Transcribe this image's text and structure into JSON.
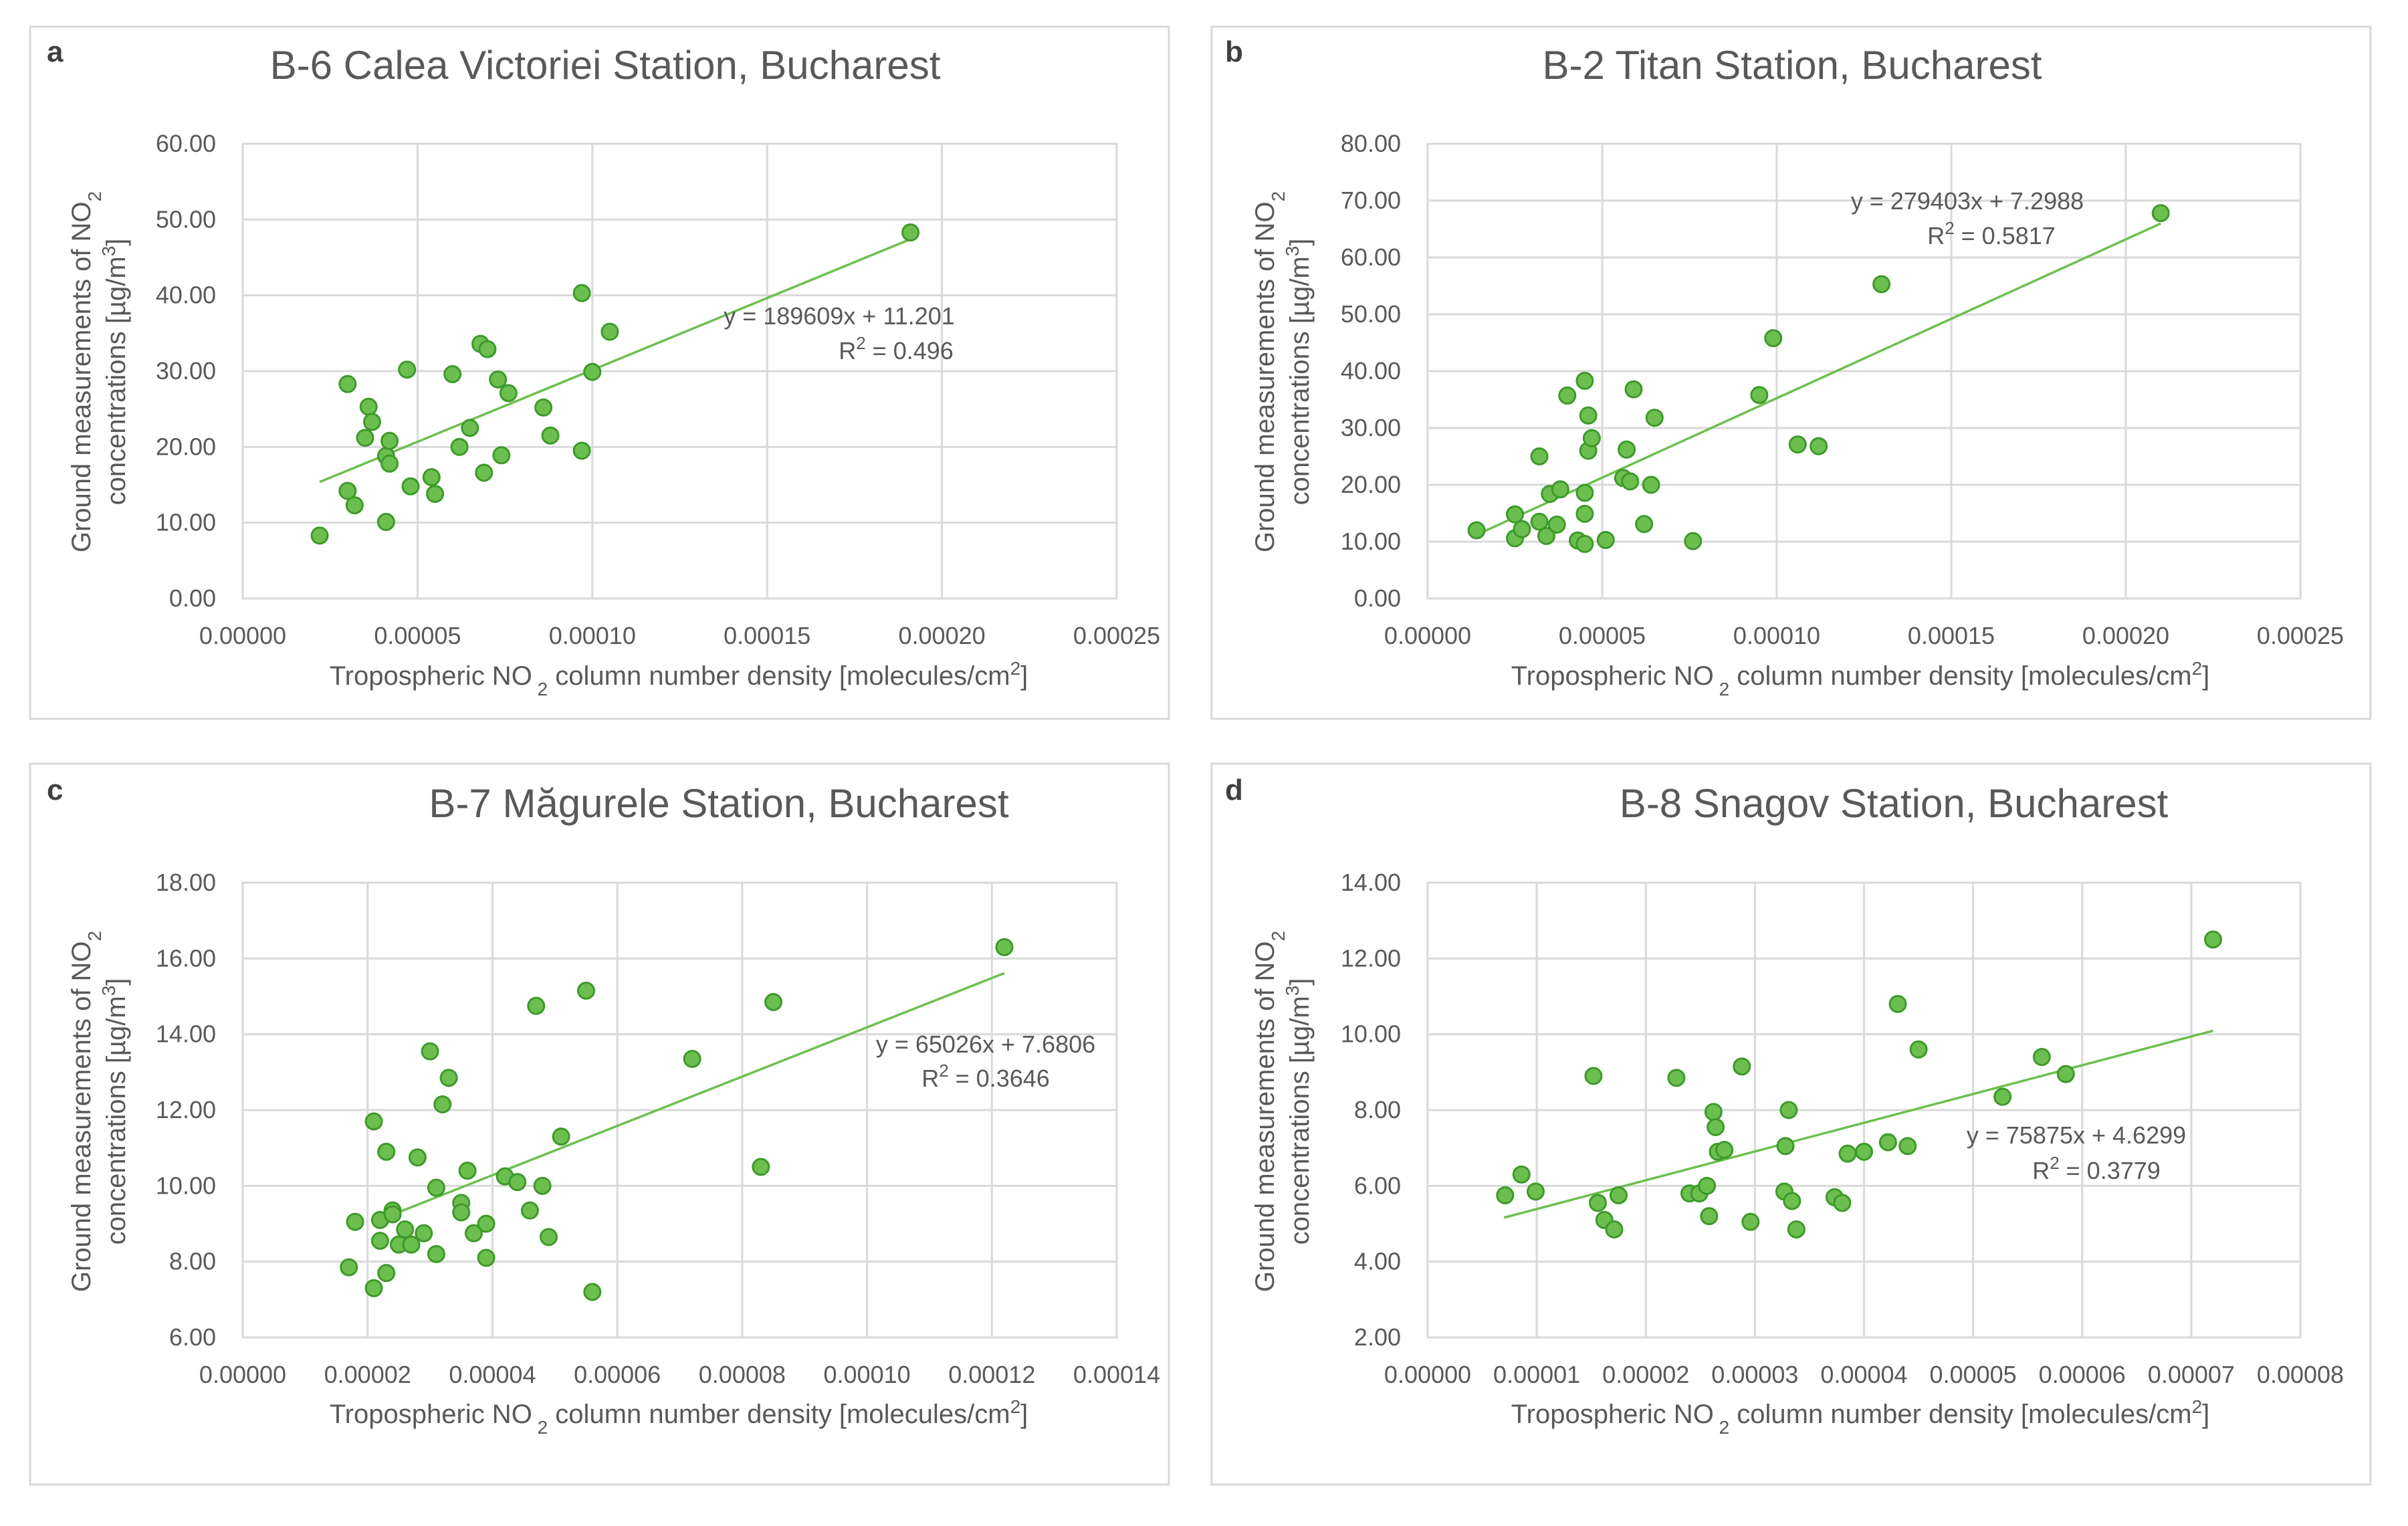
{
  "chart_data": [
    {
      "panel": "a",
      "type": "scatter",
      "title": "B-6 Calea Victoriei Station, Bucharest",
      "xlabel": {
        "pre": "Tropospheric NO",
        "sub": "2",
        "mid": " column number density [molecules/cm",
        "sup": "2",
        "post": "]"
      },
      "ylabel": {
        "line1_pre": "Ground measurements of NO",
        "line1_sub": "2",
        "line2_pre": "concentrations [µg/m",
        "line2_sup": "3",
        "line2_post": "]"
      },
      "xlim": [
        0,
        0.00025
      ],
      "ylim": [
        0,
        60
      ],
      "xticks": [
        "0.00000",
        "0.00005",
        "0.00010",
        "0.00015",
        "0.00020",
        "0.00025"
      ],
      "yticks": [
        "0.00",
        "10.00",
        "20.00",
        "30.00",
        "40.00",
        "50.00",
        "60.00"
      ],
      "trendline": {
        "slope": 189609,
        "intercept": 11.201,
        "x_range": [
          2.2e-05,
          0.000192
        ]
      },
      "equation": "y = 189609x + 11.201",
      "r2": {
        "pre": "R",
        "sup": "2",
        "post": " = 0.496"
      },
      "points": [
        [
          2.2e-05,
          8.3
        ],
        [
          3e-05,
          14.2
        ],
        [
          3e-05,
          28.3
        ],
        [
          3.2e-05,
          12.3
        ],
        [
          3.5e-05,
          21.2
        ],
        [
          3.6e-05,
          25.3
        ],
        [
          3.7e-05,
          23.3
        ],
        [
          4.1e-05,
          18.8
        ],
        [
          4.1e-05,
          10.1
        ],
        [
          4.2e-05,
          20.8
        ],
        [
          4.2e-05,
          17.8
        ],
        [
          4.7e-05,
          30.2
        ],
        [
          4.8e-05,
          14.8
        ],
        [
          5.4e-05,
          16.0
        ],
        [
          5.5e-05,
          13.8
        ],
        [
          6e-05,
          29.6
        ],
        [
          6.2e-05,
          20.0
        ],
        [
          6.5e-05,
          22.5
        ],
        [
          6.8e-05,
          33.6
        ],
        [
          6.9e-05,
          16.6
        ],
        [
          7e-05,
          32.9
        ],
        [
          7.3e-05,
          28.9
        ],
        [
          7.4e-05,
          18.9
        ],
        [
          7.6e-05,
          27.1
        ],
        [
          8.6e-05,
          25.2
        ],
        [
          8.8e-05,
          21.5
        ],
        [
          9.7e-05,
          40.3
        ],
        [
          9.7e-05,
          19.5
        ],
        [
          0.0001,
          29.9
        ],
        [
          0.000105,
          35.2
        ],
        [
          0.000191,
          48.3
        ]
      ]
    },
    {
      "panel": "b",
      "type": "scatter",
      "title": "B-2 Titan Station, Bucharest",
      "xlabel": {
        "pre": "Tropospheric NO",
        "sub": "2",
        "mid": " column number density [molecules/cm",
        "sup": "2",
        "post": "]"
      },
      "ylabel": {
        "line1_pre": "Ground measurements of NO",
        "line1_sub": "2",
        "line2_pre": "concentrations [µg/m",
        "line2_sup": "3",
        "line2_post": "]"
      },
      "xlim": [
        0,
        0.00025
      ],
      "ylim": [
        0,
        80
      ],
      "xticks": [
        "0.00000",
        "0.00005",
        "0.00010",
        "0.00015",
        "0.00020",
        "0.00025"
      ],
      "yticks": [
        "0.00",
        "10.00",
        "20.00",
        "30.00",
        "40.00",
        "50.00",
        "60.00",
        "70.00",
        "80.00"
      ],
      "trendline": {
        "slope": 279403,
        "intercept": 7.2988,
        "x_range": [
          1.4e-05,
          0.00021
        ]
      },
      "equation": "y = 279403x + 7.2988",
      "r2": {
        "pre": "R",
        "sup": "2",
        "post": " = 0.5817"
      },
      "points": [
        [
          1.4e-05,
          12.0
        ],
        [
          2.5e-05,
          14.8
        ],
        [
          2.5e-05,
          10.6
        ],
        [
          2.7e-05,
          12.2
        ],
        [
          3.2e-05,
          25.0
        ],
        [
          3.2e-05,
          13.5
        ],
        [
          3.4e-05,
          11.0
        ],
        [
          3.5e-05,
          18.4
        ],
        [
          3.7e-05,
          13.0
        ],
        [
          3.8e-05,
          19.2
        ],
        [
          4e-05,
          35.7
        ],
        [
          4.3e-05,
          10.2
        ],
        [
          4.5e-05,
          38.3
        ],
        [
          4.5e-05,
          18.6
        ],
        [
          4.5e-05,
          9.6
        ],
        [
          4.5e-05,
          14.9
        ],
        [
          4.6e-05,
          32.2
        ],
        [
          4.6e-05,
          26.0
        ],
        [
          4.7e-05,
          28.2
        ],
        [
          5.1e-05,
          10.3
        ],
        [
          5.6e-05,
          21.2
        ],
        [
          5.7e-05,
          26.2
        ],
        [
          5.8e-05,
          20.6
        ],
        [
          5.9e-05,
          36.8
        ],
        [
          6.2e-05,
          13.1
        ],
        [
          6.4e-05,
          20.0
        ],
        [
          6.5e-05,
          31.8
        ],
        [
          7.6e-05,
          10.1
        ],
        [
          9.5e-05,
          35.8
        ],
        [
          9.9e-05,
          45.8
        ],
        [
          0.000106,
          27.1
        ],
        [
          0.000112,
          26.8
        ],
        [
          0.00013,
          55.3
        ],
        [
          0.00021,
          67.8
        ]
      ]
    },
    {
      "panel": "c",
      "type": "scatter",
      "title": "B-7 Măgurele Station, Bucharest",
      "xlabel": {
        "pre": "Tropospheric NO",
        "sub": "2",
        "mid": " column number density [molecules/cm",
        "sup": "2",
        "post": "]"
      },
      "ylabel": {
        "line1_pre": "Ground measurements of NO",
        "line1_sub": "2",
        "line2_pre": "concentrations [µg/m",
        "line2_sup": "3",
        "line2_post": "]"
      },
      "xlim": [
        0,
        0.00014
      ],
      "ylim": [
        6,
        18
      ],
      "xticks": [
        "0.00000",
        "0.00002",
        "0.00004",
        "0.00006",
        "0.00008",
        "0.00010",
        "0.00012",
        "0.00014"
      ],
      "yticks": [
        "6.00",
        "8.00",
        "10.00",
        "12.00",
        "14.00",
        "16.00",
        "18.00"
      ],
      "trendline": {
        "slope": 65026,
        "intercept": 7.6806,
        "x_range": [
          2.2e-05,
          0.000122
        ]
      },
      "equation": "y = 65026x + 7.6806",
      "r2": {
        "pre": "R",
        "sup": "2",
        "post": " = 0.3646"
      },
      "points": [
        [
          1.7e-05,
          7.85
        ],
        [
          1.8e-05,
          9.05
        ],
        [
          2.1e-05,
          7.3
        ],
        [
          2.1e-05,
          11.7
        ],
        [
          2.2e-05,
          8.55
        ],
        [
          2.2e-05,
          9.1
        ],
        [
          2.3e-05,
          7.7
        ],
        [
          2.3e-05,
          10.9
        ],
        [
          2.4e-05,
          9.35
        ],
        [
          2.4e-05,
          9.25
        ],
        [
          2.5e-05,
          8.45
        ],
        [
          2.6e-05,
          8.85
        ],
        [
          2.7e-05,
          8.45
        ],
        [
          2.8e-05,
          10.75
        ],
        [
          2.9e-05,
          8.75
        ],
        [
          3e-05,
          13.55
        ],
        [
          3.1e-05,
          9.95
        ],
        [
          3.1e-05,
          8.2
        ],
        [
          3.2e-05,
          12.15
        ],
        [
          3.3e-05,
          12.85
        ],
        [
          3.5e-05,
          9.55
        ],
        [
          3.5e-05,
          9.3
        ],
        [
          3.6e-05,
          10.4
        ],
        [
          3.7e-05,
          8.75
        ],
        [
          3.9e-05,
          8.1
        ],
        [
          3.9e-05,
          9.0
        ],
        [
          4.2e-05,
          10.25
        ],
        [
          4.4e-05,
          10.1
        ],
        [
          4.6e-05,
          9.35
        ],
        [
          4.7e-05,
          14.75
        ],
        [
          4.8e-05,
          10.0
        ],
        [
          4.9e-05,
          8.65
        ],
        [
          5.1e-05,
          11.3
        ],
        [
          5.5e-05,
          15.15
        ],
        [
          5.6e-05,
          7.2
        ],
        [
          7.2e-05,
          13.35
        ],
        [
          8.3e-05,
          10.5
        ],
        [
          8.5e-05,
          14.85
        ],
        [
          0.000122,
          16.3
        ]
      ]
    },
    {
      "panel": "d",
      "type": "scatter",
      "title": "B-8 Snagov Station, Bucharest",
      "xlabel": {
        "pre": "Tropospheric NO",
        "sub": "2",
        "mid": " column number density [molecules/cm",
        "sup": "2",
        "post": "]"
      },
      "ylabel": {
        "line1_pre": "Ground measurements of NO",
        "line1_sub": "2",
        "line2_pre": "concentrations [µg/m",
        "line2_sup": "3",
        "line2_post": "]"
      },
      "xlim": [
        0,
        8e-05
      ],
      "ylim": [
        2,
        14
      ],
      "xticks": [
        "0.00000",
        "0.00001",
        "0.00002",
        "0.00003",
        "0.00004",
        "0.00005",
        "0.00006",
        "0.00007",
        "0.00008"
      ],
      "yticks": [
        "2.00",
        "4.00",
        "6.00",
        "8.00",
        "10.00",
        "12.00",
        "14.00"
      ],
      "trendline": {
        "slope": 75875,
        "intercept": 4.6299,
        "x_range": [
          7e-06,
          7.2e-05
        ]
      },
      "equation": "y = 75875x + 4.6299",
      "r2": {
        "pre": "R",
        "sup": "2",
        "post": " = 0.3779"
      },
      "points": [
        [
          7.1e-06,
          5.75
        ],
        [
          8.6e-06,
          6.3
        ],
        [
          9.9e-06,
          5.85
        ],
        [
          1.52e-05,
          8.9
        ],
        [
          1.56e-05,
          5.55
        ],
        [
          1.62e-05,
          5.1
        ],
        [
          1.71e-05,
          4.85
        ],
        [
          1.75e-05,
          5.75
        ],
        [
          2.28e-05,
          8.85
        ],
        [
          2.4e-05,
          5.8
        ],
        [
          2.49e-05,
          5.8
        ],
        [
          2.56e-05,
          6.0
        ],
        [
          2.58e-05,
          5.2
        ],
        [
          2.62e-05,
          7.95
        ],
        [
          2.64e-05,
          7.55
        ],
        [
          2.66e-05,
          6.9
        ],
        [
          2.72e-05,
          6.95
        ],
        [
          2.88e-05,
          9.15
        ],
        [
          2.96e-05,
          5.05
        ],
        [
          3.27e-05,
          5.85
        ],
        [
          3.28e-05,
          7.05
        ],
        [
          3.31e-05,
          8.0
        ],
        [
          3.34e-05,
          5.6
        ],
        [
          3.38e-05,
          4.85
        ],
        [
          3.73e-05,
          5.7
        ],
        [
          3.8e-05,
          5.55
        ],
        [
          3.85e-05,
          6.85
        ],
        [
          4e-05,
          6.9
        ],
        [
          4.22e-05,
          7.15
        ],
        [
          4.31e-05,
          10.8
        ],
        [
          4.4e-05,
          7.05
        ],
        [
          4.5e-05,
          9.6
        ],
        [
          5.27e-05,
          8.35
        ],
        [
          5.63e-05,
          9.4
        ],
        [
          5.85e-05,
          8.95
        ],
        [
          7.2e-05,
          12.5
        ]
      ]
    }
  ]
}
